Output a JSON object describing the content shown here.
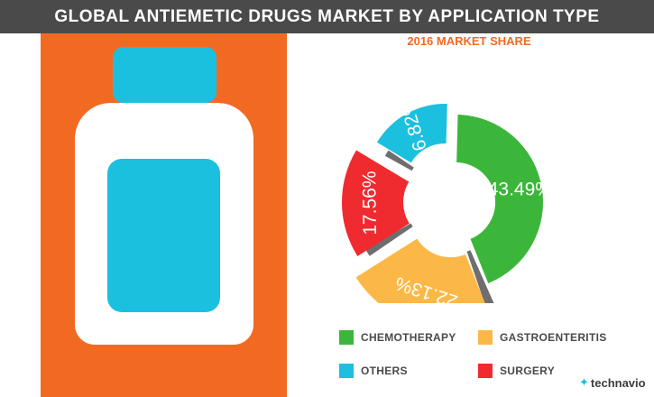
{
  "header": {
    "title": "GLOBAL ANTIEMETIC DRUGS MARKET BY APPLICATION TYPE"
  },
  "subtitle": "2016 MARKET SHARE",
  "chart_data": {
    "type": "pie",
    "title": "GLOBAL ANTIEMETIC DRUGS MARKET BY APPLICATION TYPE",
    "subtitle": "2016 MARKET SHARE",
    "categories": [
      "CHEMOTHERAPY",
      "GASTROENTERITIS",
      "SURGERY",
      "OTHERS"
    ],
    "values": [
      43.49,
      22.13,
      17.56,
      16.82
    ],
    "labels": [
      "43.49%",
      "22.13%",
      "17.56%",
      "16.82%"
    ],
    "colors": [
      "#3cb63a",
      "#fcb846",
      "#ef2b30",
      "#1cc0df"
    ],
    "legend_position": "bottom"
  },
  "legend": {
    "chemotherapy": "CHEMOTHERAPY",
    "gastroenteritis": "GASTROENTERITIS",
    "others": "OTHERS",
    "surgery": "SURGERY"
  },
  "brand": {
    "mark": "✦",
    "name": "technavio"
  }
}
